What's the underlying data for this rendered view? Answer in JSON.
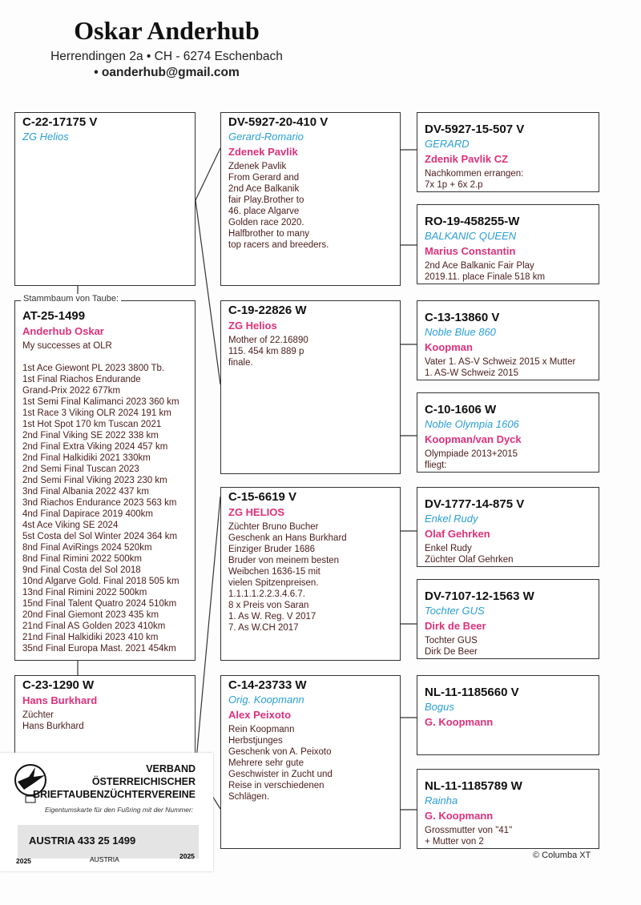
{
  "header": {
    "name": "Oskar Anderhub",
    "address": "Herrendingen 2a • CH - 6274 Eschenbach",
    "email": "• oanderhub@gmail.com"
  },
  "subject_label": "Stammbaum von Taube:",
  "pedigree": {
    "sire": {
      "ring": "C-22-17175 V",
      "name": "ZG Helios",
      "owner": "",
      "notes": ""
    },
    "subject": {
      "ring": "AT-25-1499",
      "name": "",
      "owner": "Anderhub Oskar",
      "notes": "My successes at OLR\n\n1st Ace Giewont PL 2023  3800 Tb.\n1st Final Riachos Endurande\n Grand-Prix 2022 677km\n1st Semi Final Kalimanci 2023 360 km\n1st Race 3 Viking OLR 2024 191 km\n1st Hot Spot 170 km Tuscan 2021\n2nd Final Viking SE 2022 338 km\n2nd Final Extra Viking 2024 457 km\n2nd Final Halkidiki 2021 330km\n2nd Semi Final Tuscan 2023\n2nd Semi Final Viking  2023 230 km\n3nd Final Albania 2022 437 km\n3nd Riachos Endurance 2023 563 km\n4nd Final Dapirace 2019 400km\n4st Ace Viking SE 2024\n5st Costa del Sol Winter 2024 364 km\n8nd Final AviRings  2024 520km\n8nd Final Rimini 2022 500km\n9nd Final Costa del Sol 2018\n10nd Algarve Gold. Final 2018 505 km\n13nd Final Rimini 2022 500km\n15nd Final Talent Quatro 2024 510km\n20nd Final Giemont 2023 435 km\n21nd Final AS Golden 2023 410km\n21nd Final Halkidiki 2023 410 km\n35nd Final Europa Mast. 2021 454km"
    },
    "dam": {
      "ring": "C-23-1290 W",
      "name": "",
      "owner": "Hans Burkhard",
      "notes": "Züchter\nHans Burkhard"
    },
    "gen2": [
      {
        "ring": "DV-5927-20-410 V",
        "name": "Gerard-Romario",
        "owner": "Zdenek Pavlik",
        "notes": "Zdenek Pavlik\nFrom Gerard and\n2nd Ace Balkanik\nfair Play.Brother to\n46. place Algarve\nGolden race 2020.\nHalfbrother to many\ntop racers and breeders."
      },
      {
        "ring": "C-19-22826 W",
        "name": "",
        "owner": "ZG Helios",
        "notes": "Mother of 22.16890\n115. 454 km 889 p\nfinale."
      },
      {
        "ring": "C-15-6619 V",
        "name": "",
        "owner": "ZG HELIOS",
        "notes": "Züchter Bruno Bucher\nGeschenk an Hans Burkhard\nEinziger Bruder 1686\nBruder von meinem besten\nWeibchen 1636-15 mit\nvielen Spitzenpreisen.\n1.1.1.1.2.2.3.4.6.7.\n8 x Preis von Saran\n1. As W. Reg. V 2017\n7. As W.CH 2017"
      },
      {
        "ring": "C-14-23733 W",
        "name": "Orig. Koopmann",
        "owner": "Alex Peixoto",
        "notes": "Rein Koopmann\nHerbstjunges\nGeschenk von A. Peixoto\nMehrere sehr gute\nGeschwister in Zucht und\nReise in verschiedenen\nSchlägen."
      }
    ],
    "gen3": [
      {
        "ring": "DV-5927-15-507 V",
        "name": "GERARD",
        "owner": "Zdenik Pavlik CZ",
        "notes": "Nachkommen errangen:\n7x 1p + 6x 2.p"
      },
      {
        "ring": "RO-19-458255-W",
        "name": "BALKANIC QUEEN",
        "owner": "Marius Constantin",
        "notes": "2nd Ace Balkanic Fair Play\n2019.11. place Finale 518 km"
      },
      {
        "ring": "C-13-13860 V",
        "name": "Noble Blue 860",
        "owner": "Koopman",
        "notes": "Vater 1. AS-V Schweiz 2015 x Mutter\n1. AS-W Schweiz 2015"
      },
      {
        "ring": "C-10-1606 W",
        "name": "Noble Olympia 1606",
        "owner": "Koopman/van Dyck",
        "notes": "Olympiade 2013+2015\nfliegt:"
      },
      {
        "ring": "DV-1777-14-875 V",
        "name": "Enkel Rudy",
        "owner": "Olaf Gehrken",
        "notes": "Enkel Rudy\nZüchter Olaf Gehrken"
      },
      {
        "ring": "DV-7107-12-1563 W",
        "name": "Tochter GUS",
        "owner": "Dirk de Beer",
        "notes": "Tochter GUS\nDirk De Beer"
      },
      {
        "ring": "NL-11-1185660 V",
        "name": "Bogus",
        "owner": "G. Koopmann",
        "notes": ""
      },
      {
        "ring": "NL-11-1185789 W",
        "name": "Rainha",
        "owner": "G. Koopmann",
        "notes": "Grossmutter von \"41\"\n+ Mutter von 2"
      }
    ]
  },
  "ring_card": {
    "org_line1": "VERBAND",
    "org_line2": "ÖSTERREICHISCHER",
    "org_line3": "BRIEFTAUBENZÜCHTERVEREINE",
    "subtitle": "Eigentumskarte für den Fußring mit der Nummer:",
    "ring_number": "AUSTRIA 433 25   1499",
    "year_left": "2025",
    "country": "AUSTRIA",
    "year_right": "2025"
  },
  "footer": {
    "copyright": "© Columba XT"
  },
  "colors": {
    "name": "#2a9fd6",
    "owner": "#e0307a",
    "notes": "#4a1c1c"
  }
}
